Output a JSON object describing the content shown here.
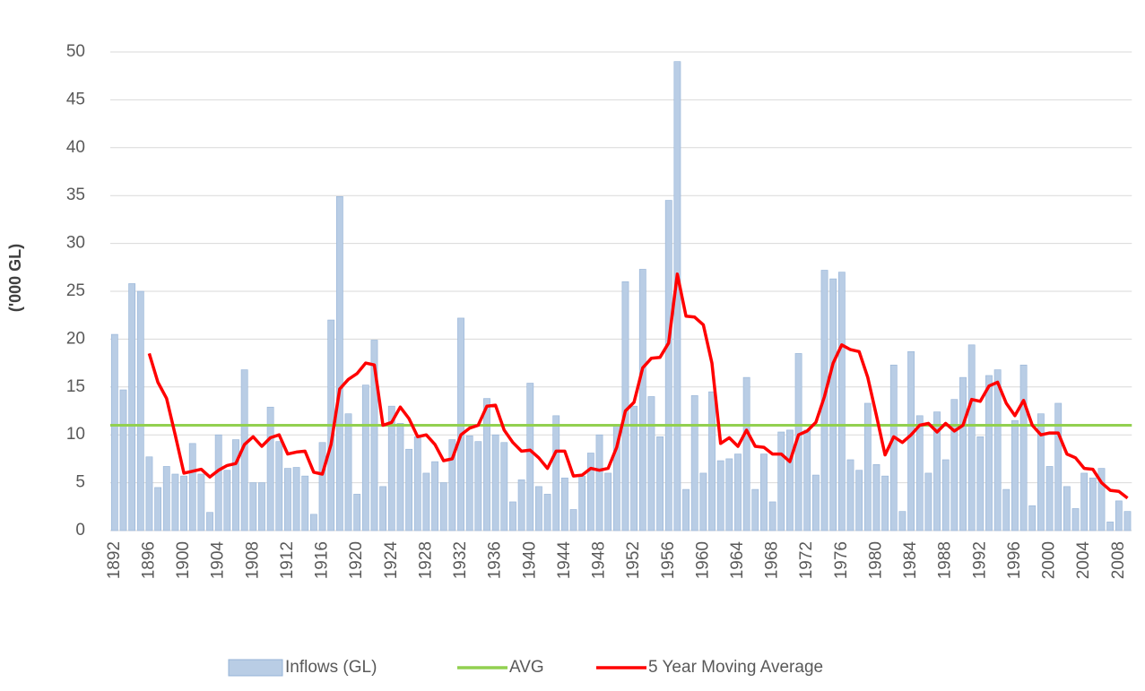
{
  "chart_data": {
    "type": "bar",
    "y_label": "('000 GL)",
    "categories": [
      "1892",
      null,
      null,
      null,
      "1896",
      null,
      null,
      null,
      "1900",
      null,
      null,
      null,
      "1904",
      null,
      null,
      null,
      "1908",
      null,
      null,
      null,
      "1912",
      null,
      null,
      null,
      "1916",
      null,
      null,
      null,
      "1920",
      null,
      null,
      null,
      "1924",
      null,
      null,
      null,
      "1928",
      null,
      null,
      null,
      "1932",
      null,
      null,
      null,
      "1936",
      null,
      null,
      null,
      "1940",
      null,
      null,
      null,
      "1944",
      null,
      null,
      null,
      "1948",
      null,
      null,
      null,
      "1952",
      null,
      null,
      null,
      "1956",
      null,
      null,
      null,
      "1960",
      null,
      null,
      null,
      "1964",
      null,
      null,
      null,
      "1968",
      null,
      null,
      null,
      "1972",
      null,
      null,
      null,
      "1976",
      null,
      null,
      null,
      "1980",
      null,
      null,
      null,
      "1984",
      null,
      null,
      null,
      "1988",
      null,
      null,
      null,
      "1992",
      null,
      null,
      null,
      "1996",
      null,
      null,
      null,
      "2000",
      null,
      null,
      null,
      "2004",
      null,
      null,
      null,
      "2008",
      null
    ],
    "series": [
      {
        "name": "Inflows (GL)",
        "type": "bar",
        "color": "#b9cde5",
        "values": [
          20.5,
          14.7,
          25.8,
          25,
          7.7,
          4.5,
          6.7,
          5.9,
          5.7,
          9.1,
          5.9,
          1.9,
          10,
          6.3,
          9.5,
          16.8,
          5,
          5,
          12.9,
          9.3,
          6.5,
          6.6,
          5.7,
          1.7,
          9.2,
          22,
          34.9,
          12.2,
          3.8,
          15.2,
          19.9,
          4.6,
          13,
          11.2,
          8.5,
          9.8,
          6,
          7.2,
          5,
          9.5,
          22.2,
          9.9,
          9.3,
          13.8,
          10,
          9.2,
          3,
          5.3,
          15.4,
          4.6,
          3.8,
          12,
          5.5,
          2.2,
          5.7,
          8.1,
          10,
          6,
          11,
          26,
          13,
          27.3,
          14,
          9.8,
          34.5,
          49,
          4.3,
          14.1,
          6,
          14.5,
          7.3,
          7.5,
          8,
          16,
          4.3,
          8,
          3,
          10.3,
          10.5,
          18.5,
          10.5,
          5.8,
          27.2,
          26.3,
          27,
          7.4,
          6.3,
          13.3,
          6.9,
          5.7,
          17.3,
          2,
          18.7,
          12,
          6,
          12.4,
          7.4,
          13.7,
          16,
          19.4,
          9.8,
          16.2,
          16.8,
          4.3,
          11.5,
          17.3,
          2.6,
          12.2,
          6.7,
          13.3,
          4.6,
          2.3,
          6,
          5.5,
          6.5,
          0.9,
          3.1,
          2
        ]
      },
      {
        "name": "AVG",
        "type": "hline",
        "color": "#92d050",
        "value": 11
      },
      {
        "name": "5 Year Moving Average",
        "type": "line",
        "color": "#ff0000",
        "values": [
          null,
          null,
          null,
          null,
          18.5,
          15.5,
          13.8,
          10,
          6,
          6.2,
          6.4,
          5.6,
          6.3,
          6.8,
          7,
          9,
          9.8,
          8.8,
          9.7,
          10,
          8,
          8.2,
          8.3,
          6.1,
          5.9,
          9,
          14.8,
          15.8,
          16.4,
          17.5,
          17.3,
          11,
          11.3,
          12.9,
          11.7,
          9.8,
          10,
          9,
          7.3,
          7.5,
          10,
          10.7,
          11,
          13,
          13.1,
          10.5,
          9.2,
          8.3,
          8.4,
          7.6,
          6.5,
          8.3,
          8.3,
          5.7,
          5.8,
          6.5,
          6.3,
          6.5,
          8.7,
          12.5,
          13.4,
          17,
          18,
          18.1,
          19.6,
          26.8,
          22.4,
          22.3,
          21.5,
          17.5,
          9.1,
          9.7,
          8.8,
          10.5,
          8.8,
          8.7,
          8,
          8,
          7.2,
          10,
          10.4,
          11.3,
          14,
          17.5,
          19.4,
          18.9,
          18.7,
          16,
          12,
          7.9,
          9.8,
          9.2,
          10,
          11,
          11.2,
          10.3,
          11.2,
          10.4,
          11,
          13.7,
          13.5,
          15.1,
          15.5,
          13.3,
          12,
          13.6,
          11,
          10,
          10.2,
          10.2,
          8,
          7.6,
          6.5,
          6.4,
          5,
          4.2,
          4.1,
          3.4
        ]
      }
    ],
    "ylim": [
      0,
      50
    ],
    "yticks": [
      0,
      5,
      10,
      15,
      20,
      25,
      30,
      35,
      40,
      45,
      50
    ],
    "grid": true,
    "legend": "bottom"
  }
}
